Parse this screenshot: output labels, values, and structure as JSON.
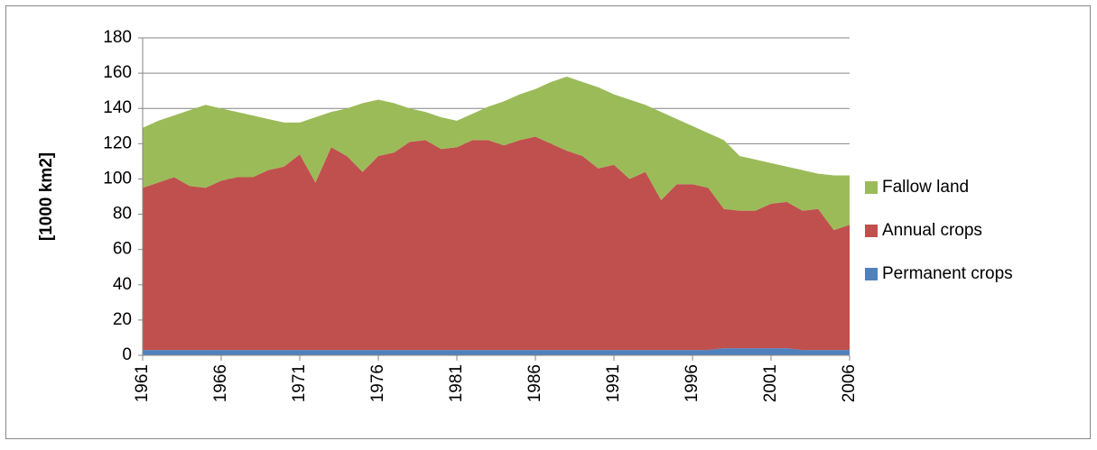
{
  "chart_data": {
    "type": "stacked_area",
    "y_label": "[1000 km2]",
    "x": [
      1961,
      1962,
      1963,
      1964,
      1965,
      1966,
      1967,
      1968,
      1969,
      1970,
      1971,
      1972,
      1973,
      1974,
      1975,
      1976,
      1977,
      1978,
      1979,
      1980,
      1981,
      1982,
      1983,
      1984,
      1985,
      1986,
      1987,
      1988,
      1989,
      1990,
      1991,
      1992,
      1993,
      1994,
      1995,
      1996,
      1997,
      1998,
      1999,
      2000,
      2001,
      2002,
      2003,
      2004,
      2005,
      2006
    ],
    "series": [
      {
        "name": "Permanent crops",
        "color": "#4f81bd",
        "values": [
          3,
          3,
          3,
          3,
          3,
          3,
          3,
          3,
          3,
          3,
          3,
          3,
          3,
          3,
          3,
          3,
          3,
          3,
          3,
          3,
          3,
          3,
          3,
          3,
          3,
          3,
          3,
          3,
          3,
          3,
          3,
          3,
          3,
          3,
          3,
          3,
          3,
          4,
          4,
          4,
          4,
          4,
          3,
          3,
          3,
          3
        ]
      },
      {
        "name": "Annual crops",
        "color": "#c0504d",
        "values": [
          92,
          95,
          98,
          93,
          92,
          96,
          98,
          98,
          102,
          104,
          111,
          95,
          115,
          110,
          101,
          110,
          112,
          118,
          119,
          114,
          115,
          119,
          119,
          116,
          119,
          121,
          117,
          113,
          110,
          103,
          105,
          97,
          101,
          85,
          94,
          94,
          92,
          79,
          78,
          78,
          82,
          83,
          79,
          80,
          68,
          71
        ]
      },
      {
        "name": "Fallow land",
        "color": "#9bbb59",
        "values": [
          34,
          35,
          35,
          43,
          47,
          41,
          37,
          35,
          29,
          25,
          18,
          37,
          20,
          27,
          39,
          32,
          28,
          19,
          16,
          18,
          15,
          15,
          19,
          25,
          26,
          27,
          35,
          42,
          42,
          46,
          40,
          45,
          38,
          50,
          37,
          33,
          31,
          39,
          31,
          29,
          23,
          20,
          23,
          20,
          31,
          28
        ]
      }
    ],
    "xlim": [
      1961,
      2006
    ],
    "xticks": [
      1961,
      1966,
      1971,
      1976,
      1981,
      1986,
      1991,
      1996,
      2001,
      2006
    ],
    "ylim": [
      0,
      180
    ],
    "yticks": [
      0,
      20,
      40,
      60,
      80,
      100,
      120,
      140,
      160,
      180
    ],
    "grid": true,
    "legend": "right"
  }
}
